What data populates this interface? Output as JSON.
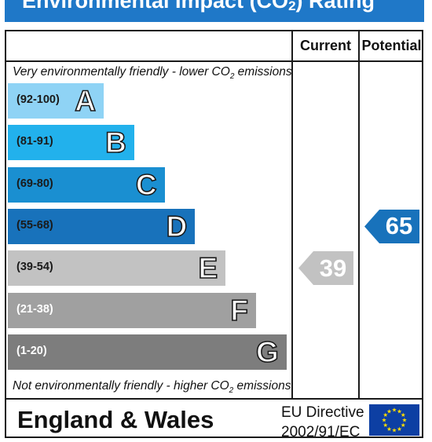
{
  "title": {
    "prefix": "Environmental Impact (CO",
    "sub": "2",
    "suffix": ") Rating"
  },
  "columns": {
    "current": "Current",
    "potential": "Potential"
  },
  "top_note": {
    "prefix": "Very environmentally friendly - lower CO",
    "sub": "2",
    "suffix": " emissions"
  },
  "bottom_note": {
    "prefix": "Not environmentally friendly - higher CO",
    "sub": "2",
    "suffix": " emissions"
  },
  "bands": [
    {
      "range": "(92-100)",
      "letter": "A",
      "color": "#8fd3f5",
      "text_color": "#1a1a1a"
    },
    {
      "range": "(81-91)",
      "letter": "B",
      "color": "#22b1ec",
      "text_color": "#1a1a1a"
    },
    {
      "range": "(69-80)",
      "letter": "C",
      "color": "#1a8fd1",
      "text_color": "#1a1a1a"
    },
    {
      "range": "(55-68)",
      "letter": "D",
      "color": "#1872bb",
      "text_color": "#1a1a1a"
    },
    {
      "range": "(39-54)",
      "letter": "E",
      "color": "#c2c2c2",
      "text_color": "#1a1a1a"
    },
    {
      "range": "(21-38)",
      "letter": "F",
      "color": "#a0a0a0",
      "text_color": "#ffffff"
    },
    {
      "range": "(1-20)",
      "letter": "G",
      "color": "#7d7d7d",
      "text_color": "#ffffff"
    }
  ],
  "current": {
    "value": "39",
    "band": "E",
    "color": "#c2c2c2"
  },
  "potential": {
    "value": "65",
    "band": "D",
    "color": "#1872bb"
  },
  "footer": {
    "region": "England & Wales",
    "directive_line1": "EU Directive",
    "directive_line2": "2002/91/EC"
  },
  "colors": {
    "title_bar": "#1f78c8",
    "flag": "#0d3fa3",
    "stars": "#ffdd00"
  }
}
